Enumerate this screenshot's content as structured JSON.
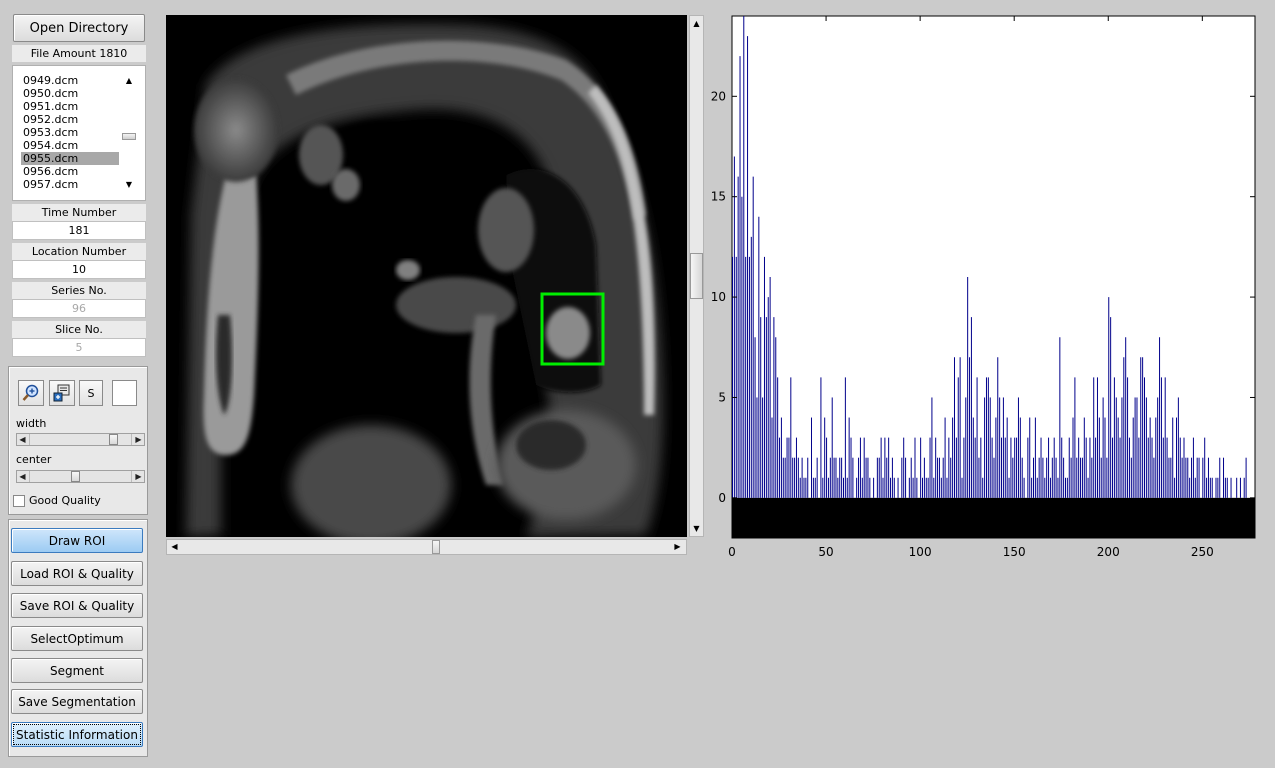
{
  "left_panel": {
    "open_directory": "Open Directory",
    "file_amount": "File Amount 1810",
    "files": [
      "0949.dcm",
      "0950.dcm",
      "0951.dcm",
      "0952.dcm",
      "0953.dcm",
      "0954.dcm",
      "0955.dcm",
      "0956.dcm",
      "0957.dcm"
    ],
    "selected_file": "0955.dcm",
    "time_number_label": "Time Number",
    "time_number_value": "181",
    "location_number_label": "Location Number",
    "location_number_value": "10",
    "series_no_label": "Series No.",
    "series_no_value": "96",
    "slice_no_label": "Slice No.",
    "slice_no_value": "5"
  },
  "tools": {
    "zoom_icon": "zoom-in-icon",
    "pan_icon": "pan-icon",
    "s_label": "S",
    "width_label": "width",
    "center_label": "center",
    "width_level": 0.85,
    "center_level": 0.45,
    "good_quality_label": "Good Quality",
    "good_quality_checked": false
  },
  "actions": {
    "draw_roi": "Draw ROI",
    "load_roi": "Load ROI & Quality",
    "save_roi": "Save ROI & Quality",
    "select_optimum": "SelectOptimum",
    "segment": "Segment",
    "save_segmentation": "Save Segmentation",
    "statistic_information": "Statistic Information"
  },
  "image_view": {
    "roi_color": "#00ee00",
    "vertical_scroll_level": 0.5,
    "horizontal_scroll_level": 0.52
  },
  "chart_data": {
    "type": "bar",
    "title": "",
    "xlabel": "",
    "ylabel": "",
    "xlim": [
      0,
      278
    ],
    "ylim": [
      -2,
      24
    ],
    "xticks": [
      0,
      50,
      100,
      150,
      200,
      250
    ],
    "yticks": [
      0,
      5,
      10,
      15,
      20
    ],
    "bar_color": "#00008b",
    "values": [
      12,
      17,
      12,
      16,
      22,
      15,
      24,
      12,
      23,
      12,
      13,
      16,
      8,
      5,
      14,
      9,
      5,
      12,
      9,
      10,
      11,
      4,
      9,
      8,
      6,
      3,
      4,
      2,
      2,
      3,
      3,
      6,
      2,
      2,
      3,
      2,
      1,
      2,
      1,
      1,
      2,
      0,
      4,
      1,
      1,
      2,
      0,
      6,
      1,
      4,
      3,
      1,
      2,
      5,
      2,
      2,
      1,
      2,
      2,
      1,
      6,
      1,
      4,
      3,
      2,
      0,
      1,
      2,
      3,
      1,
      3,
      2,
      2,
      1,
      0,
      1,
      0,
      2,
      2,
      3,
      1,
      3,
      2,
      3,
      1,
      2,
      1,
      0,
      1,
      0,
      2,
      3,
      2,
      0,
      1,
      2,
      1,
      3,
      1,
      0,
      3,
      1,
      2,
      1,
      1,
      3,
      5,
      1,
      3,
      2,
      2,
      1,
      2,
      4,
      1,
      3,
      2,
      4,
      7,
      3,
      6,
      7,
      1,
      3,
      5,
      11,
      7,
      9,
      4,
      3,
      6,
      2,
      3,
      1,
      5,
      6,
      6,
      5,
      3,
      2,
      4,
      7,
      5,
      3,
      5,
      3,
      4,
      1,
      3,
      2,
      3,
      3,
      5,
      4,
      2,
      1,
      0,
      3,
      4,
      1,
      2,
      4,
      1,
      2,
      3,
      2,
      1,
      2,
      3,
      1,
      2,
      3,
      2,
      1,
      8,
      3,
      2,
      1,
      1,
      3,
      2,
      4,
      6,
      2,
      3,
      2,
      2,
      4,
      3,
      1,
      3,
      2,
      6,
      3,
      6,
      4,
      2,
      5,
      4,
      2,
      10,
      9,
      3,
      6,
      5,
      4,
      3,
      5,
      7,
      8,
      6,
      3,
      2,
      4,
      5,
      5,
      3,
      7,
      7,
      6,
      5,
      3,
      4,
      3,
      2,
      4,
      5,
      8,
      6,
      3,
      6,
      3,
      2,
      2,
      4,
      1,
      4,
      5,
      3,
      2,
      3,
      2,
      2,
      1,
      2,
      3,
      1,
      2,
      2,
      0,
      2,
      3,
      1,
      2,
      1,
      1,
      0,
      1,
      1,
      2,
      0,
      2,
      1,
      1,
      0,
      1,
      0,
      0,
      1,
      0,
      1,
      0,
      1,
      2,
      0,
      0,
      0,
      0,
      0,
      0
    ]
  }
}
